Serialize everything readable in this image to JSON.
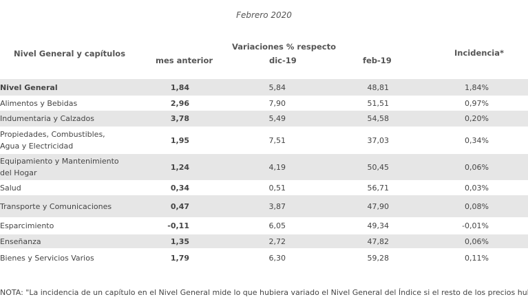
{
  "period": "Febrero 2020",
  "headers": {
    "nivel": "Nivel General y capítulos",
    "variaciones": "Variaciones % respecto",
    "mes_anterior": "mes anterior",
    "dic": "dic-19",
    "feb": "feb-19",
    "incidencia": "Incidencia*"
  },
  "rows": [
    {
      "name": "Nivel General",
      "mes": "1,84",
      "dic": "5,84",
      "feb": "48,81",
      "inc": "1,84%"
    },
    {
      "name": "Alimentos y Bebidas",
      "mes": "2,96",
      "dic": "7,90",
      "feb": "51,51",
      "inc": "0,97%"
    },
    {
      "name": "Indumentaria y Calzados",
      "mes": "3,78",
      "dic": "5,49",
      "feb": "54,58",
      "inc": "0,20%"
    },
    {
      "name": "Propiedades, Combustibles, Agua y Electricidad",
      "mes": "1,95",
      "dic": "7,51",
      "feb": "37,03",
      "inc": "0,34%"
    },
    {
      "name": "Equipamiento y Mantenimiento del Hogar",
      "mes": "1,24",
      "dic": "4,19",
      "feb": "50,45",
      "inc": "0,06%"
    },
    {
      "name": "Salud",
      "mes": "0,34",
      "dic": "0,51",
      "feb": "56,71",
      "inc": "0,03%"
    },
    {
      "name": "Transporte y Comunicaciones",
      "mes": "0,47",
      "dic": "3,87",
      "feb": "47,90",
      "inc": "0,08%"
    },
    {
      "name": "Esparcimiento",
      "mes": "-0,11",
      "dic": "6,05",
      "feb": "49,34",
      "inc": "-0,01%"
    },
    {
      "name": "Enseñanza",
      "mes": "1,35",
      "dic": "2,72",
      "feb": "47,82",
      "inc": "0,06%"
    },
    {
      "name": "Bienes y Servicios Varios",
      "mes": "1,79",
      "dic": "6,30",
      "feb": "59,28",
      "inc": "0,11%"
    }
  ],
  "note": "NOTA: \"La incidencia de un capítulo en el Nivel General mide lo que hubiera variado el Nivel General del Índice si el resto de los precios hubiesen"
}
